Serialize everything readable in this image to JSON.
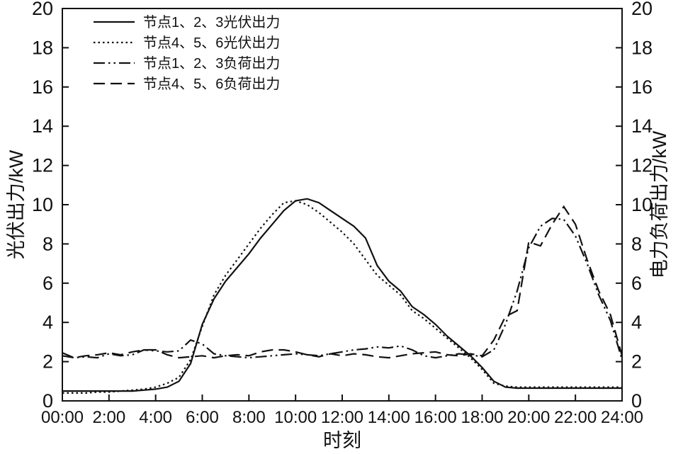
{
  "colors": {
    "line": "#111111",
    "background": "#ffffff"
  },
  "chart_data": {
    "type": "line",
    "title": "",
    "xlabel": "时刻",
    "ylabel_left": "光伏出力/kW",
    "ylabel_right": "电力负荷出力/kW",
    "xlim": [
      0,
      24
    ],
    "ylim": [
      0,
      20
    ],
    "grid": false,
    "legend_position": "top-left",
    "x_start": 0,
    "x_step": 0.5,
    "x_ticks": [
      0,
      2,
      4,
      6,
      8,
      10,
      12,
      14,
      16,
      18,
      20,
      22,
      24
    ],
    "x_tick_labels": [
      "00:00",
      "2:00",
      "4:00",
      "6:00",
      "8:00",
      "10:00",
      "12:00",
      "14:00",
      "16:00",
      "18:00",
      "20:00",
      "22:00",
      "24:00"
    ],
    "y_ticks": [
      0,
      2,
      4,
      6,
      8,
      10,
      12,
      14,
      16,
      18,
      20
    ],
    "series": [
      {
        "name": "节点1、2、3光伏出力",
        "style": "solid",
        "axis": "left",
        "values": [
          0.5,
          0.5,
          0.5,
          0.5,
          0.5,
          0.5,
          0.5,
          0.55,
          0.6,
          0.7,
          1.0,
          1.9,
          3.9,
          5.2,
          6.1,
          6.8,
          7.5,
          8.3,
          9.0,
          9.7,
          10.2,
          10.3,
          10.1,
          9.7,
          9.3,
          8.9,
          8.3,
          6.9,
          6.1,
          5.6,
          4.8,
          4.4,
          3.9,
          3.3,
          2.8,
          2.3,
          1.7,
          1.0,
          0.7,
          0.65,
          0.65,
          0.65,
          0.65,
          0.65,
          0.65,
          0.65,
          0.65,
          0.65,
          0.65
        ]
      },
      {
        "name": "节点4、5、6光伏出力",
        "style": "dotted",
        "axis": "left",
        "values": [
          0.4,
          0.4,
          0.4,
          0.45,
          0.45,
          0.5,
          0.55,
          0.6,
          0.7,
          0.9,
          1.2,
          2.1,
          3.8,
          5.4,
          6.4,
          7.2,
          8.0,
          8.8,
          9.5,
          10.1,
          10.2,
          10.0,
          9.6,
          9.1,
          8.6,
          8.0,
          7.2,
          6.4,
          5.9,
          5.4,
          4.6,
          4.2,
          3.7,
          3.2,
          2.7,
          2.2,
          1.6,
          0.9,
          0.75,
          0.7,
          0.7,
          0.7,
          0.7,
          0.7,
          0.7,
          0.7,
          0.7,
          0.7,
          0.7
        ]
      },
      {
        "name": "节点1、2、3负荷出力",
        "style": "dashdotdot",
        "axis": "right",
        "values": [
          2.3,
          2.2,
          2.25,
          2.2,
          2.4,
          2.3,
          2.35,
          2.6,
          2.55,
          2.5,
          2.55,
          3.1,
          2.9,
          2.4,
          2.3,
          2.25,
          2.2,
          2.25,
          2.3,
          2.35,
          2.4,
          2.35,
          2.3,
          2.4,
          2.5,
          2.6,
          2.65,
          2.75,
          2.7,
          2.8,
          2.6,
          2.3,
          2.2,
          2.3,
          2.4,
          2.35,
          2.25,
          2.6,
          3.9,
          5.6,
          7.8,
          8.9,
          9.3,
          9.25,
          8.4,
          7.0,
          5.4,
          4.1,
          2.1
        ]
      },
      {
        "name": "节点4、5、6负荷出力",
        "style": "dashed",
        "axis": "right",
        "values": [
          2.45,
          2.2,
          2.3,
          2.35,
          2.45,
          2.35,
          2.5,
          2.6,
          2.6,
          2.35,
          2.2,
          2.25,
          2.3,
          2.2,
          2.3,
          2.35,
          2.3,
          2.5,
          2.6,
          2.6,
          2.5,
          2.35,
          2.25,
          2.4,
          2.3,
          2.4,
          2.35,
          2.25,
          2.2,
          2.3,
          2.4,
          2.45,
          2.5,
          2.35,
          2.3,
          2.4,
          2.3,
          3.1,
          4.3,
          4.6,
          8.1,
          7.9,
          9.0,
          9.9,
          9.0,
          7.2,
          5.6,
          4.4,
          2.3
        ]
      }
    ]
  }
}
